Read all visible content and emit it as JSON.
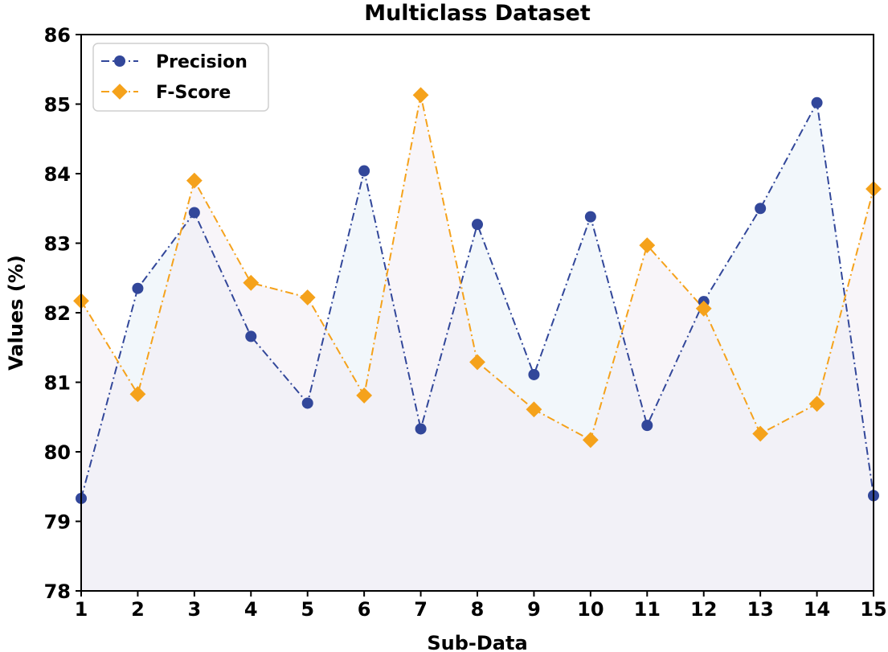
{
  "chart_data": {
    "type": "line",
    "title": "Multiclass Dataset",
    "xlabel": "Sub-Data",
    "ylabel": "Values (%)",
    "x": [
      1,
      2,
      3,
      4,
      5,
      6,
      7,
      8,
      9,
      10,
      11,
      12,
      13,
      14,
      15
    ],
    "xticks": [
      "1",
      "2",
      "3",
      "4",
      "5",
      "6",
      "7",
      "8",
      "9",
      "10",
      "11",
      "12",
      "13",
      "14",
      "15"
    ],
    "yticks": [
      "78",
      "79",
      "80",
      "81",
      "82",
      "83",
      "84",
      "85",
      "86"
    ],
    "xlim": [
      1,
      15
    ],
    "ylim": [
      78,
      86
    ],
    "legend_position": "top-left",
    "series": [
      {
        "name": "Precision",
        "color": "#32479a",
        "marker": "circle",
        "linestyle": "dash-dot",
        "fill": "#e8f1f8",
        "values": [
          79.33,
          82.35,
          83.44,
          81.66,
          80.7,
          84.04,
          80.33,
          83.27,
          81.11,
          83.38,
          80.38,
          82.16,
          83.5,
          85.02,
          79.37
        ]
      },
      {
        "name": "F-Score",
        "color": "#f5a21b",
        "marker": "diamond",
        "linestyle": "dash-dot",
        "fill": "#f3ecf4",
        "values": [
          82.17,
          80.83,
          83.9,
          82.43,
          82.22,
          80.81,
          85.13,
          81.29,
          80.61,
          80.17,
          82.97,
          82.06,
          80.26,
          80.69,
          83.78
        ]
      }
    ]
  }
}
